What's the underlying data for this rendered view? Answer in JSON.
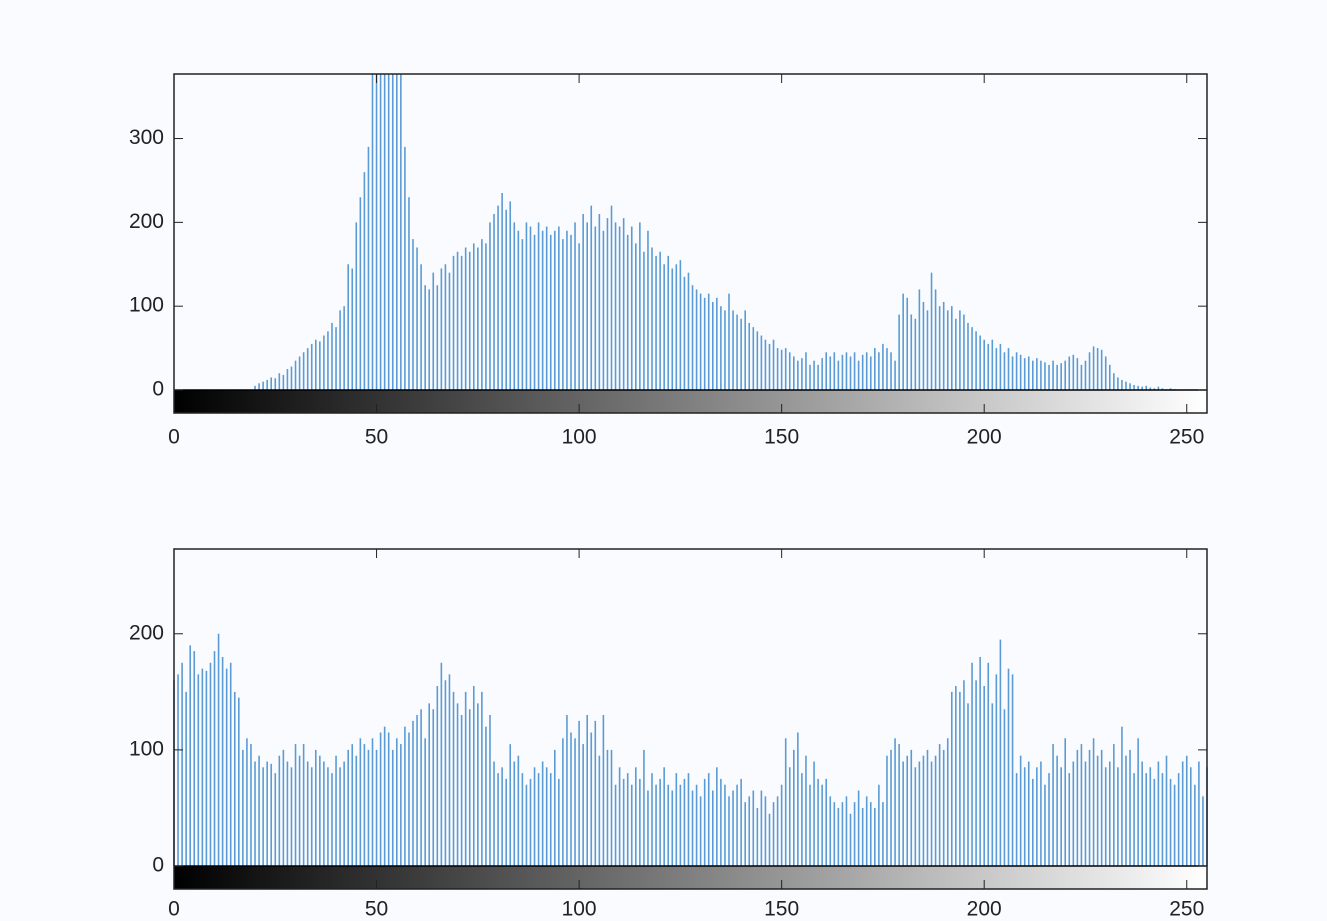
{
  "chart_data": [
    {
      "type": "stem",
      "color": "#5b9bd5",
      "xlim": [
        0,
        255
      ],
      "ylim": [
        0,
        377
      ],
      "xticks": [
        0,
        50,
        100,
        150,
        200,
        250
      ],
      "yticks": [
        0,
        100,
        200,
        300
      ],
      "x": [
        0,
        1,
        2,
        3,
        4,
        5,
        6,
        7,
        8,
        9,
        10,
        11,
        12,
        13,
        14,
        15,
        16,
        17,
        18,
        19,
        20,
        21,
        22,
        23,
        24,
        25,
        26,
        27,
        28,
        29,
        30,
        31,
        32,
        33,
        34,
        35,
        36,
        37,
        38,
        39,
        40,
        41,
        42,
        43,
        44,
        45,
        46,
        47,
        48,
        49,
        50,
        51,
        52,
        53,
        54,
        55,
        56,
        57,
        58,
        59,
        60,
        61,
        62,
        63,
        64,
        65,
        66,
        67,
        68,
        69,
        70,
        71,
        72,
        73,
        74,
        75,
        76,
        77,
        78,
        79,
        80,
        81,
        82,
        83,
        84,
        85,
        86,
        87,
        88,
        89,
        90,
        91,
        92,
        93,
        94,
        95,
        96,
        97,
        98,
        99,
        100,
        101,
        102,
        103,
        104,
        105,
        106,
        107,
        108,
        109,
        110,
        111,
        112,
        113,
        114,
        115,
        116,
        117,
        118,
        119,
        120,
        121,
        122,
        123,
        124,
        125,
        126,
        127,
        128,
        129,
        130,
        131,
        132,
        133,
        134,
        135,
        136,
        137,
        138,
        139,
        140,
        141,
        142,
        143,
        144,
        145,
        146,
        147,
        148,
        149,
        150,
        151,
        152,
        153,
        154,
        155,
        156,
        157,
        158,
        159,
        160,
        161,
        162,
        163,
        164,
        165,
        166,
        167,
        168,
        169,
        170,
        171,
        172,
        173,
        174,
        175,
        176,
        177,
        178,
        179,
        180,
        181,
        182,
        183,
        184,
        185,
        186,
        187,
        188,
        189,
        190,
        191,
        192,
        193,
        194,
        195,
        196,
        197,
        198,
        199,
        200,
        201,
        202,
        203,
        204,
        205,
        206,
        207,
        208,
        209,
        210,
        211,
        212,
        213,
        214,
        215,
        216,
        217,
        218,
        219,
        220,
        221,
        222,
        223,
        224,
        225,
        226,
        227,
        228,
        229,
        230,
        231,
        232,
        233,
        234,
        235,
        236,
        237,
        238,
        239,
        240,
        241,
        242,
        243,
        244,
        245,
        246,
        247,
        248,
        249,
        250,
        251,
        252,
        253,
        254,
        255
      ],
      "values": [
        0,
        0,
        0,
        0,
        0,
        0,
        0,
        0,
        0,
        0,
        0,
        0,
        0,
        0,
        0,
        0,
        0,
        0,
        0,
        0,
        5,
        8,
        10,
        12,
        15,
        14,
        20,
        18,
        25,
        28,
        35,
        40,
        45,
        50,
        55,
        60,
        58,
        65,
        70,
        80,
        75,
        95,
        100,
        150,
        145,
        200,
        230,
        260,
        290,
        377,
        377,
        377,
        377,
        377,
        377,
        377,
        377,
        290,
        230,
        180,
        170,
        150,
        125,
        120,
        140,
        125,
        145,
        150,
        140,
        160,
        165,
        160,
        170,
        165,
        175,
        170,
        180,
        175,
        200,
        210,
        220,
        235,
        215,
        225,
        200,
        190,
        180,
        200,
        195,
        185,
        200,
        190,
        195,
        185,
        190,
        195,
        180,
        190,
        185,
        200,
        175,
        210,
        200,
        220,
        195,
        210,
        190,
        205,
        220,
        200,
        195,
        205,
        185,
        195,
        175,
        200,
        165,
        190,
        170,
        160,
        165,
        150,
        160,
        145,
        150,
        155,
        135,
        140,
        125,
        120,
        115,
        110,
        115,
        105,
        110,
        100,
        95,
        115,
        95,
        90,
        85,
        95,
        80,
        75,
        70,
        65,
        60,
        55,
        60,
        50,
        48,
        50,
        45,
        40,
        35,
        38,
        45,
        30,
        35,
        30,
        38,
        45,
        40,
        45,
        35,
        42,
        45,
        40,
        45,
        35,
        42,
        45,
        40,
        50,
        45,
        55,
        50,
        45,
        35,
        90,
        115,
        110,
        90,
        85,
        120,
        105,
        95,
        140,
        120,
        100,
        105,
        95,
        100,
        85,
        95,
        90,
        80,
        75,
        70,
        65,
        60,
        55,
        60,
        50,
        55,
        45,
        50,
        40,
        45,
        42,
        38,
        40,
        35,
        38,
        35,
        33,
        30,
        35,
        30,
        32,
        35,
        40,
        42,
        38,
        30,
        35,
        45,
        52,
        50,
        48,
        40,
        30,
        20,
        15,
        12,
        10,
        8,
        6,
        5,
        4,
        5,
        3,
        2,
        4,
        2,
        1,
        2,
        1,
        0,
        0,
        0,
        0,
        0,
        0,
        0,
        0
      ]
    },
    {
      "type": "stem",
      "color": "#5b9bd5",
      "xlim": [
        0,
        255
      ],
      "ylim": [
        0,
        273
      ],
      "xticks": [
        0,
        50,
        100,
        150,
        200,
        250
      ],
      "yticks": [
        0,
        100,
        200
      ],
      "x": [
        0,
        1,
        2,
        3,
        4,
        5,
        6,
        7,
        8,
        9,
        10,
        11,
        12,
        13,
        14,
        15,
        16,
        17,
        18,
        19,
        20,
        21,
        22,
        23,
        24,
        25,
        26,
        27,
        28,
        29,
        30,
        31,
        32,
        33,
        34,
        35,
        36,
        37,
        38,
        39,
        40,
        41,
        42,
        43,
        44,
        45,
        46,
        47,
        48,
        49,
        50,
        51,
        52,
        53,
        54,
        55,
        56,
        57,
        58,
        59,
        60,
        61,
        62,
        63,
        64,
        65,
        66,
        67,
        68,
        69,
        70,
        71,
        72,
        73,
        74,
        75,
        76,
        77,
        78,
        79,
        80,
        81,
        82,
        83,
        84,
        85,
        86,
        87,
        88,
        89,
        90,
        91,
        92,
        93,
        94,
        95,
        96,
        97,
        98,
        99,
        100,
        101,
        102,
        103,
        104,
        105,
        106,
        107,
        108,
        109,
        110,
        111,
        112,
        113,
        114,
        115,
        116,
        117,
        118,
        119,
        120,
        121,
        122,
        123,
        124,
        125,
        126,
        127,
        128,
        129,
        130,
        131,
        132,
        133,
        134,
        135,
        136,
        137,
        138,
        139,
        140,
        141,
        142,
        143,
        144,
        145,
        146,
        147,
        148,
        149,
        150,
        151,
        152,
        153,
        154,
        155,
        156,
        157,
        158,
        159,
        160,
        161,
        162,
        163,
        164,
        165,
        166,
        167,
        168,
        169,
        170,
        171,
        172,
        173,
        174,
        175,
        176,
        177,
        178,
        179,
        180,
        181,
        182,
        183,
        184,
        185,
        186,
        187,
        188,
        189,
        190,
        191,
        192,
        193,
        194,
        195,
        196,
        197,
        198,
        199,
        200,
        201,
        202,
        203,
        204,
        205,
        206,
        207,
        208,
        209,
        210,
        211,
        212,
        213,
        214,
        215,
        216,
        217,
        218,
        219,
        220,
        221,
        222,
        223,
        224,
        225,
        226,
        227,
        228,
        229,
        230,
        231,
        232,
        233,
        234,
        235,
        236,
        237,
        238,
        239,
        240,
        241,
        242,
        243,
        244,
        245,
        246,
        247,
        248,
        249,
        250,
        251,
        252,
        253,
        254,
        255
      ],
      "values": [
        160,
        165,
        175,
        150,
        190,
        185,
        165,
        170,
        168,
        175,
        185,
        200,
        180,
        170,
        175,
        150,
        145,
        100,
        110,
        105,
        90,
        95,
        85,
        90,
        88,
        80,
        95,
        100,
        90,
        85,
        105,
        95,
        105,
        90,
        85,
        100,
        95,
        90,
        85,
        80,
        95,
        85,
        90,
        100,
        105,
        95,
        110,
        105,
        100,
        110,
        100,
        115,
        120,
        115,
        100,
        110,
        105,
        120,
        115,
        125,
        130,
        135,
        110,
        140,
        135,
        155,
        175,
        160,
        165,
        150,
        140,
        130,
        150,
        135,
        155,
        140,
        150,
        120,
        130,
        90,
        80,
        85,
        75,
        105,
        90,
        95,
        80,
        70,
        75,
        85,
        80,
        90,
        85,
        80,
        100,
        75,
        110,
        130,
        115,
        110,
        125,
        105,
        130,
        115,
        125,
        95,
        130,
        100,
        100,
        70,
        85,
        75,
        80,
        70,
        85,
        75,
        100,
        65,
        80,
        70,
        75,
        85,
        70,
        65,
        80,
        70,
        75,
        80,
        65,
        70,
        60,
        75,
        80,
        65,
        85,
        75,
        70,
        60,
        65,
        70,
        75,
        55,
        60,
        65,
        50,
        65,
        60,
        45,
        55,
        60,
        70,
        110,
        85,
        100,
        115,
        80,
        95,
        70,
        90,
        75,
        70,
        75,
        60,
        55,
        50,
        55,
        60,
        45,
        55,
        65,
        50,
        60,
        55,
        50,
        70,
        55,
        95,
        100,
        110,
        105,
        90,
        95,
        100,
        85,
        90,
        95,
        100,
        90,
        95,
        105,
        100,
        110,
        150,
        155,
        150,
        160,
        140,
        175,
        160,
        180,
        155,
        175,
        140,
        165,
        195,
        135,
        170,
        165,
        80,
        95,
        85,
        90,
        75,
        85,
        90,
        70,
        80,
        105,
        95,
        85,
        110,
        80,
        90,
        100,
        105,
        90,
        100,
        110,
        95,
        100,
        85,
        90,
        105,
        85,
        120,
        95,
        100,
        80,
        110,
        90,
        80,
        85,
        75,
        90,
        80,
        95,
        75,
        70,
        80,
        90,
        95,
        85,
        70,
        90,
        60,
        85
      ]
    }
  ]
}
